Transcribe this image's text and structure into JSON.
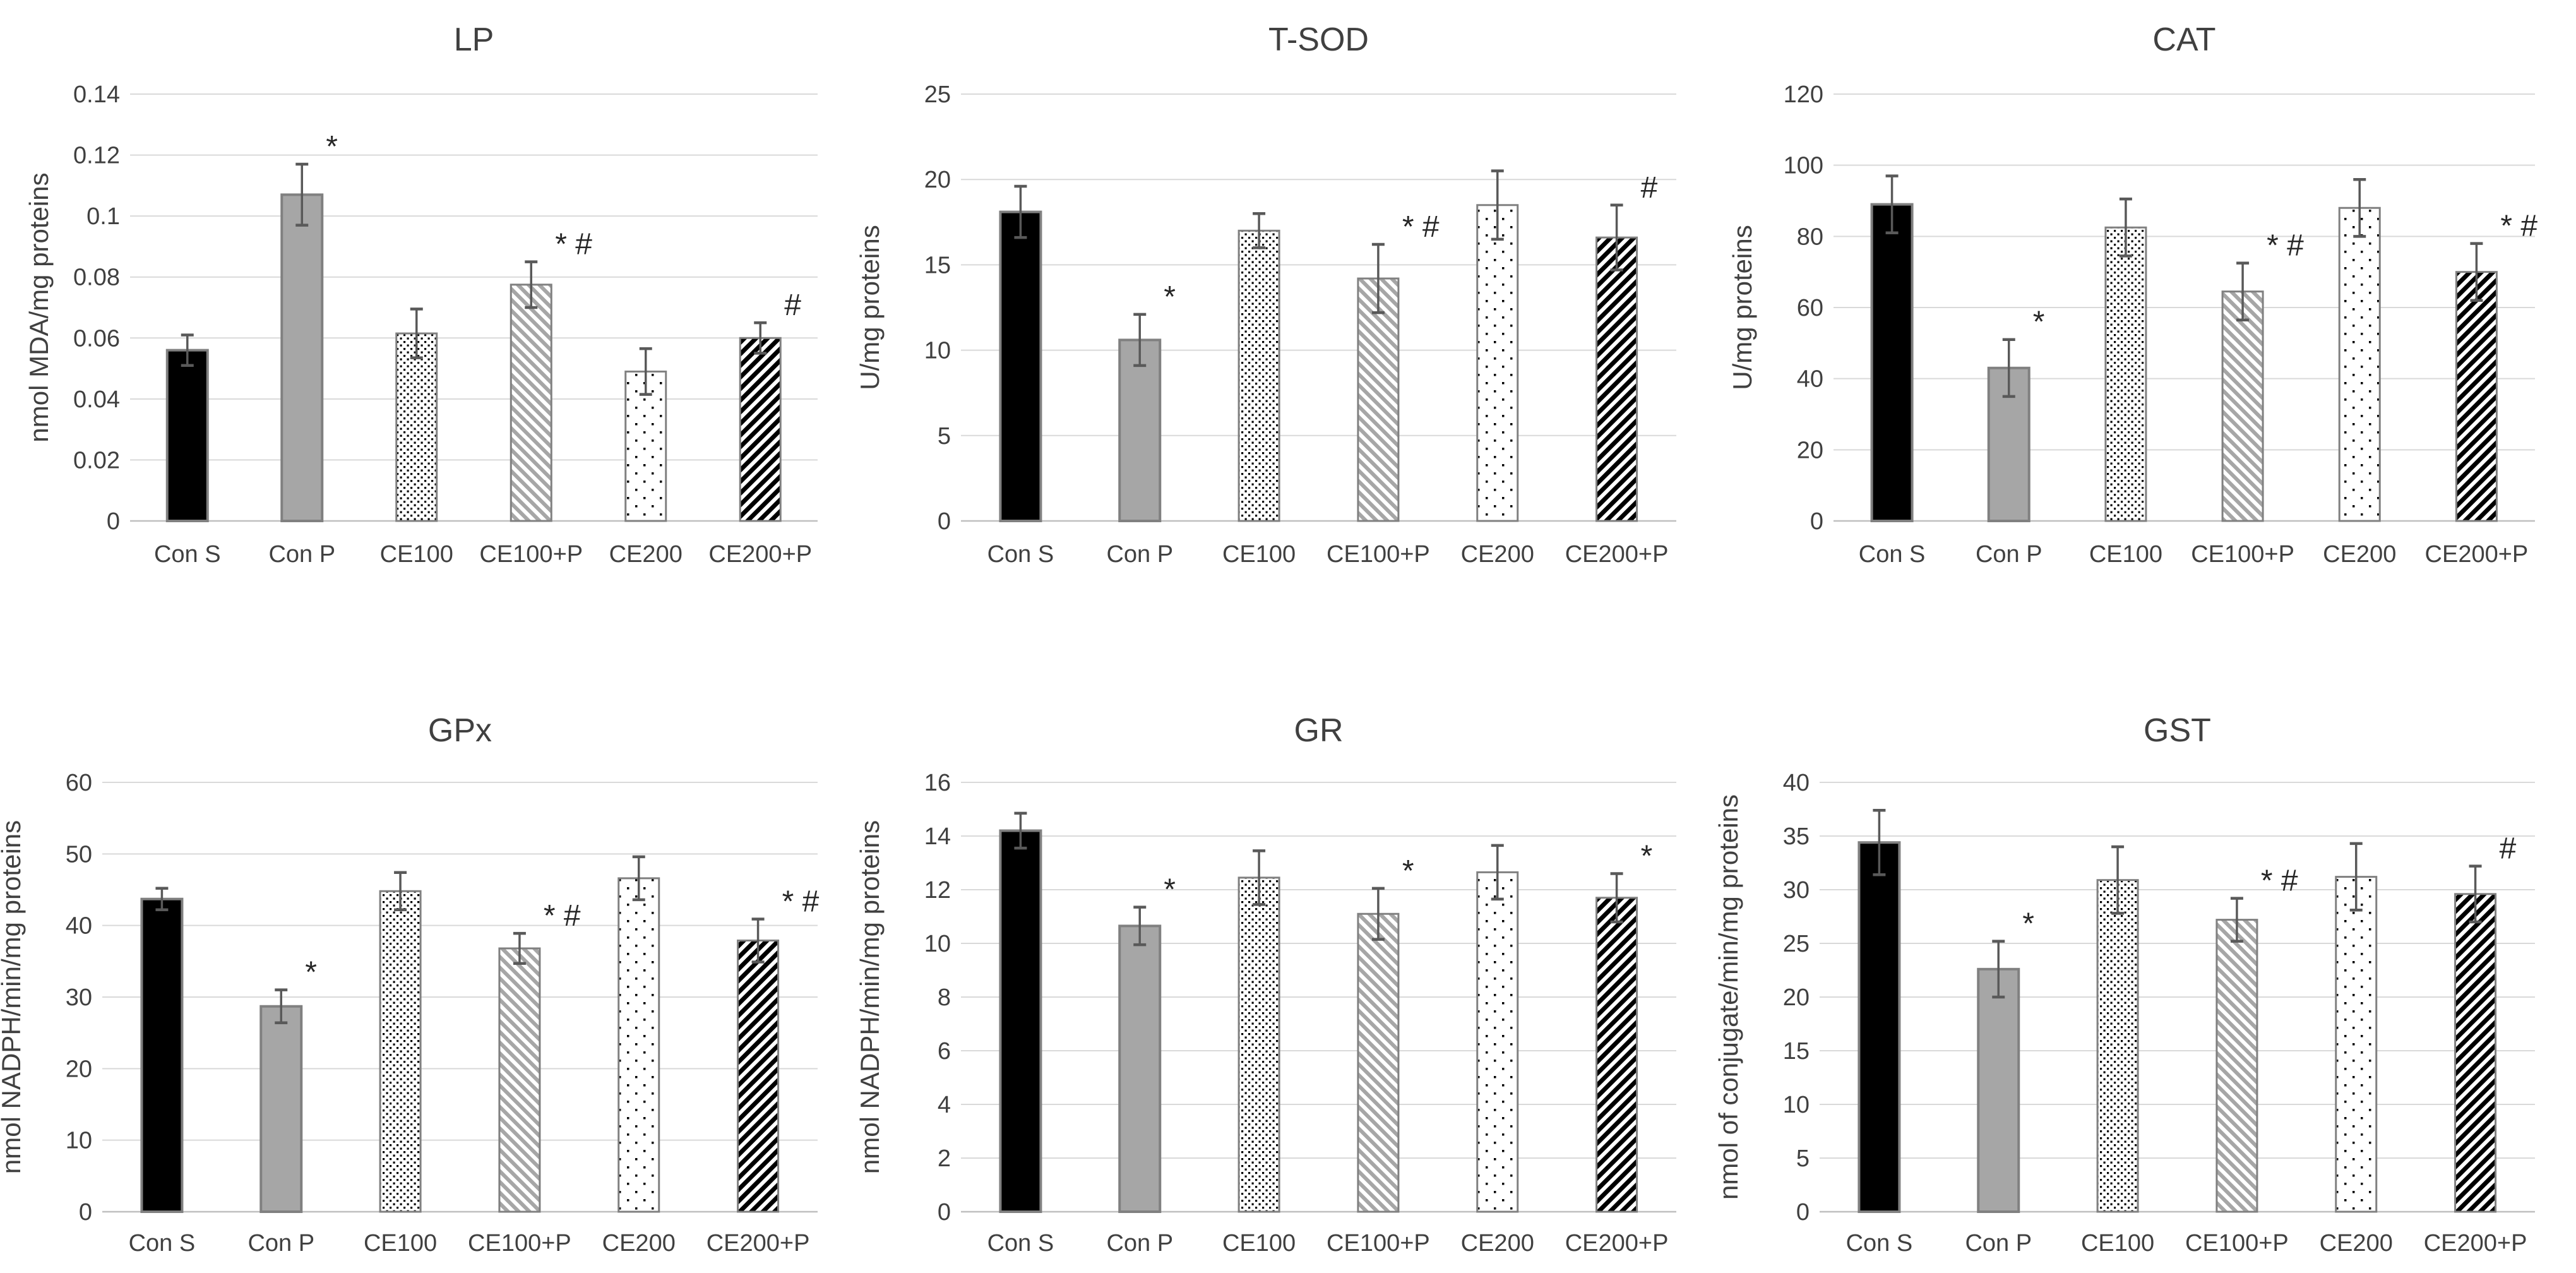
{
  "page": {
    "background": "#ffffff",
    "layout_grid": "3x2"
  },
  "colors": {
    "text": "#404040",
    "annotation_text": "#262626",
    "gridline": "#d9d9d9",
    "axis_line": "#bfbfbf",
    "error_bar": "#595959",
    "solid_black_fill": "#000000",
    "solid_gray_fill": "#a6a6a6",
    "hatch_gray": "#a6a6a6",
    "pattern_ink": "#000000",
    "bar_outline": "#808080"
  },
  "bar_styles": [
    "solid-black",
    "solid-gray",
    "dots-dense",
    "hatch-gray-down",
    "dots-sparse",
    "hatch-black-up"
  ],
  "categories": [
    "Con S",
    "Con P",
    "CE100",
    "CE100+P",
    "CE200",
    "CE200+P"
  ],
  "chart_data": [
    {
      "type": "bar",
      "title": "LP",
      "ylabel": "nmol MDA/mg proteins",
      "ylim": [
        0,
        0.14
      ],
      "yticks": [
        "0",
        "0.02",
        "0.04",
        "0.06",
        "0.08",
        "0.1",
        "0.12",
        "0.14"
      ],
      "grid": true,
      "legend": "none",
      "categories": [
        "Con S",
        "Con P",
        "CE100",
        "CE100+P",
        "CE200",
        "CE200+P"
      ],
      "values": [
        0.056,
        0.107,
        0.0615,
        0.0775,
        0.049,
        0.06
      ],
      "errors": [
        0.005,
        0.01,
        0.008,
        0.0075,
        0.0075,
        0.005
      ],
      "annotations": [
        "",
        "*",
        "",
        "* #",
        "",
        "#"
      ]
    },
    {
      "type": "bar",
      "title": "T-SOD",
      "ylabel": "U/mg proteins",
      "ylim": [
        0,
        25
      ],
      "yticks": [
        "0",
        "5",
        "10",
        "15",
        "20",
        "25"
      ],
      "grid": true,
      "legend": "none",
      "categories": [
        "Con S",
        "Con P",
        "CE100",
        "CE100+P",
        "CE200",
        "CE200+P"
      ],
      "values": [
        18.1,
        10.6,
        17.0,
        14.2,
        18.5,
        16.6
      ],
      "errors": [
        1.5,
        1.5,
        1.0,
        2.0,
        2.0,
        1.9
      ],
      "annotations": [
        "",
        "*",
        "",
        "* #",
        "",
        "#"
      ]
    },
    {
      "type": "bar",
      "title": "CAT",
      "ylabel": "U/mg proteins",
      "ylim": [
        0,
        120
      ],
      "yticks": [
        "0",
        "20",
        "40",
        "60",
        "80",
        "100",
        "120"
      ],
      "grid": true,
      "legend": "none",
      "categories": [
        "Con S",
        "Con P",
        "CE100",
        "CE100+P",
        "CE200",
        "CE200+P"
      ],
      "values": [
        89,
        43,
        82.5,
        64.5,
        88,
        70
      ],
      "errors": [
        8,
        8,
        8,
        8,
        8,
        8
      ],
      "annotations": [
        "",
        "*",
        "",
        "* #",
        "",
        "* #"
      ]
    },
    {
      "type": "bar",
      "title": "GPx",
      "ylabel": "nmol NADPH/min/mg proteins",
      "ylim": [
        0,
        60
      ],
      "yticks": [
        "0",
        "10",
        "20",
        "30",
        "40",
        "50",
        "60"
      ],
      "grid": true,
      "legend": "none",
      "categories": [
        "Con S",
        "Con P",
        "CE100",
        "CE100+P",
        "CE200",
        "CE200+P"
      ],
      "values": [
        43.7,
        28.7,
        44.8,
        36.8,
        46.6,
        37.9
      ],
      "errors": [
        1.5,
        2.3,
        2.6,
        2.1,
        3.0,
        3.0
      ],
      "annotations": [
        "",
        "*",
        "",
        "* #",
        "",
        "* #"
      ]
    },
    {
      "type": "bar",
      "title": "GR",
      "ylabel": "nmol NADPH/min/mg proteins",
      "ylim": [
        0,
        16
      ],
      "yticks": [
        "0",
        "2",
        "4",
        "6",
        "8",
        "10",
        "12",
        "14",
        "16"
      ],
      "grid": true,
      "legend": "none",
      "categories": [
        "Con S",
        "Con P",
        "CE100",
        "CE100+P",
        "CE200",
        "CE200+P"
      ],
      "values": [
        14.2,
        10.65,
        12.45,
        11.1,
        12.65,
        11.7
      ],
      "errors": [
        0.65,
        0.7,
        1.0,
        0.95,
        1.0,
        0.9
      ],
      "annotations": [
        "",
        "*",
        "",
        "*",
        "",
        "*"
      ]
    },
    {
      "type": "bar",
      "title": "GST",
      "ylabel": "nmol of conjugate/min/mg proteins",
      "ylim": [
        0,
        40
      ],
      "yticks": [
        "0",
        "5",
        "10",
        "15",
        "20",
        "25",
        "30",
        "35",
        "40"
      ],
      "grid": true,
      "legend": "none",
      "categories": [
        "Con S",
        "Con P",
        "CE100",
        "CE100+P",
        "CE200",
        "CE200+P"
      ],
      "values": [
        34.4,
        22.6,
        30.9,
        27.2,
        31.2,
        29.6
      ],
      "errors": [
        3.0,
        2.6,
        3.1,
        2.0,
        3.1,
        2.6
      ],
      "annotations": [
        "",
        "*",
        "",
        "* #",
        "",
        "#"
      ]
    }
  ]
}
